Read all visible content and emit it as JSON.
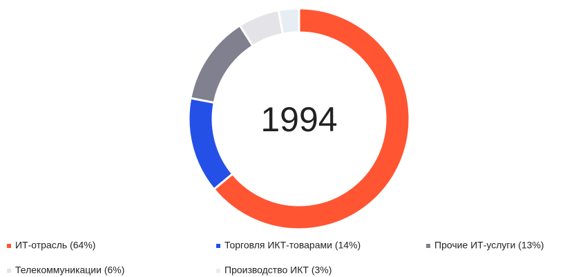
{
  "chart_data": {
    "type": "donut",
    "title": "1994",
    "categories": [
      "ИТ-отрасль (64%)",
      "Торговля ИКТ-товарами (14%)",
      "Прочие ИТ-услуги (13%)",
      "Телекоммуникации (6%)",
      "Производство ИКТ (3%)"
    ],
    "values": [
      64,
      14,
      13,
      6,
      3
    ],
    "colors": [
      "#ff5533",
      "#2450e8",
      "#80808f",
      "#e3e3e8",
      "#e6edf3"
    ],
    "legend": "bottom"
  }
}
